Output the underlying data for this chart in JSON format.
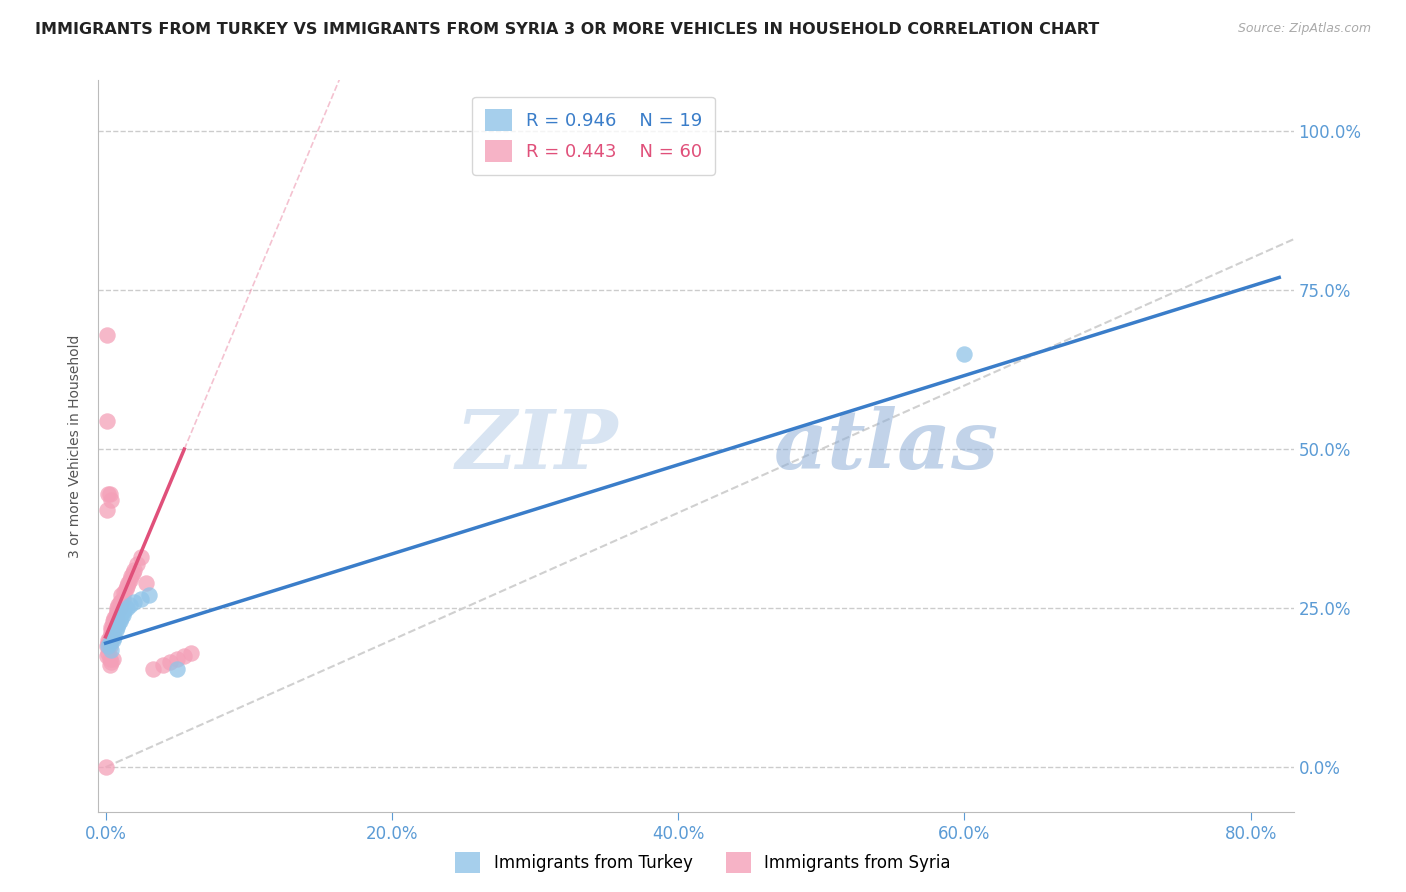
{
  "title": "IMMIGRANTS FROM TURKEY VS IMMIGRANTS FROM SYRIA 3 OR MORE VEHICLES IN HOUSEHOLD CORRELATION CHART",
  "source": "Source: ZipAtlas.com",
  "ylabel": "3 or more Vehicles in Household",
  "xlim": [
    -0.005,
    0.83
  ],
  "ylim": [
    -0.07,
    1.08
  ],
  "xticks": [
    0.0,
    0.2,
    0.4,
    0.6,
    0.8
  ],
  "xticklabels": [
    "0.0%",
    "20.0%",
    "40.0%",
    "60.0%",
    "80.0%"
  ],
  "yticks_right": [
    0.0,
    0.25,
    0.5,
    0.75,
    1.0
  ],
  "yticklabels_right": [
    "0.0%",
    "25.0%",
    "50.0%",
    "75.0%",
    "100.0%"
  ],
  "turkey_color": "#90c4e8",
  "syria_color": "#f4a0b8",
  "trendline_turkey_color": "#3a7dc9",
  "trendline_syria_color": "#e0507a",
  "diagonal_color": "#d0d0d0",
  "watermark_zip_color": "#b8cfe8",
  "watermark_atlas_color": "#90b0d8",
  "legend_turkey_R": "0.946",
  "legend_turkey_N": "19",
  "legend_syria_R": "0.443",
  "legend_syria_N": "60",
  "turkey_x": [
    0.002,
    0.003,
    0.004,
    0.005,
    0.006,
    0.007,
    0.008,
    0.009,
    0.01,
    0.011,
    0.012,
    0.013,
    0.015,
    0.017,
    0.02,
    0.025,
    0.03,
    0.05,
    0.6
  ],
  "turkey_y": [
    0.19,
    0.195,
    0.185,
    0.2,
    0.205,
    0.215,
    0.22,
    0.225,
    0.23,
    0.235,
    0.24,
    0.245,
    0.25,
    0.255,
    0.26,
    0.265,
    0.27,
    0.155,
    0.65
  ],
  "syria_x": [
    0.001,
    0.001,
    0.002,
    0.002,
    0.002,
    0.003,
    0.003,
    0.003,
    0.004,
    0.004,
    0.004,
    0.004,
    0.005,
    0.005,
    0.005,
    0.005,
    0.006,
    0.006,
    0.006,
    0.007,
    0.007,
    0.007,
    0.008,
    0.008,
    0.008,
    0.009,
    0.009,
    0.01,
    0.01,
    0.011,
    0.011,
    0.012,
    0.013,
    0.014,
    0.015,
    0.016,
    0.017,
    0.018,
    0.019,
    0.02,
    0.022,
    0.025,
    0.028,
    0.033,
    0.04,
    0.045,
    0.05,
    0.055,
    0.06,
    0.001,
    0.002,
    0.003,
    0.004,
    0.003,
    0.003,
    0.004,
    0.005,
    0.001,
    0.0,
    0.001
  ],
  "syria_y": [
    0.175,
    0.19,
    0.18,
    0.195,
    0.2,
    0.19,
    0.2,
    0.205,
    0.2,
    0.21,
    0.215,
    0.22,
    0.21,
    0.22,
    0.225,
    0.23,
    0.22,
    0.23,
    0.235,
    0.225,
    0.235,
    0.24,
    0.235,
    0.245,
    0.25,
    0.245,
    0.255,
    0.25,
    0.26,
    0.26,
    0.27,
    0.265,
    0.275,
    0.28,
    0.285,
    0.29,
    0.295,
    0.3,
    0.305,
    0.31,
    0.32,
    0.33,
    0.29,
    0.155,
    0.16,
    0.165,
    0.17,
    0.175,
    0.18,
    0.545,
    0.43,
    0.43,
    0.42,
    0.16,
    0.17,
    0.165,
    0.17,
    0.405,
    0.0,
    0.68
  ],
  "turkey_trendline_x0": 0.0,
  "turkey_trendline_y0": 0.195,
  "turkey_trendline_x1": 0.82,
  "turkey_trendline_y1": 0.77,
  "syria_trendline_x0": 0.0,
  "syria_trendline_y0": 0.205,
  "syria_trendline_x1": 0.055,
  "syria_trendline_y1": 0.5,
  "background_color": "#ffffff",
  "grid_color": "#cccccc",
  "axis_color": "#5b9bd5",
  "title_fontsize": 11.5,
  "label_fontsize": 10,
  "tick_fontsize": 12
}
